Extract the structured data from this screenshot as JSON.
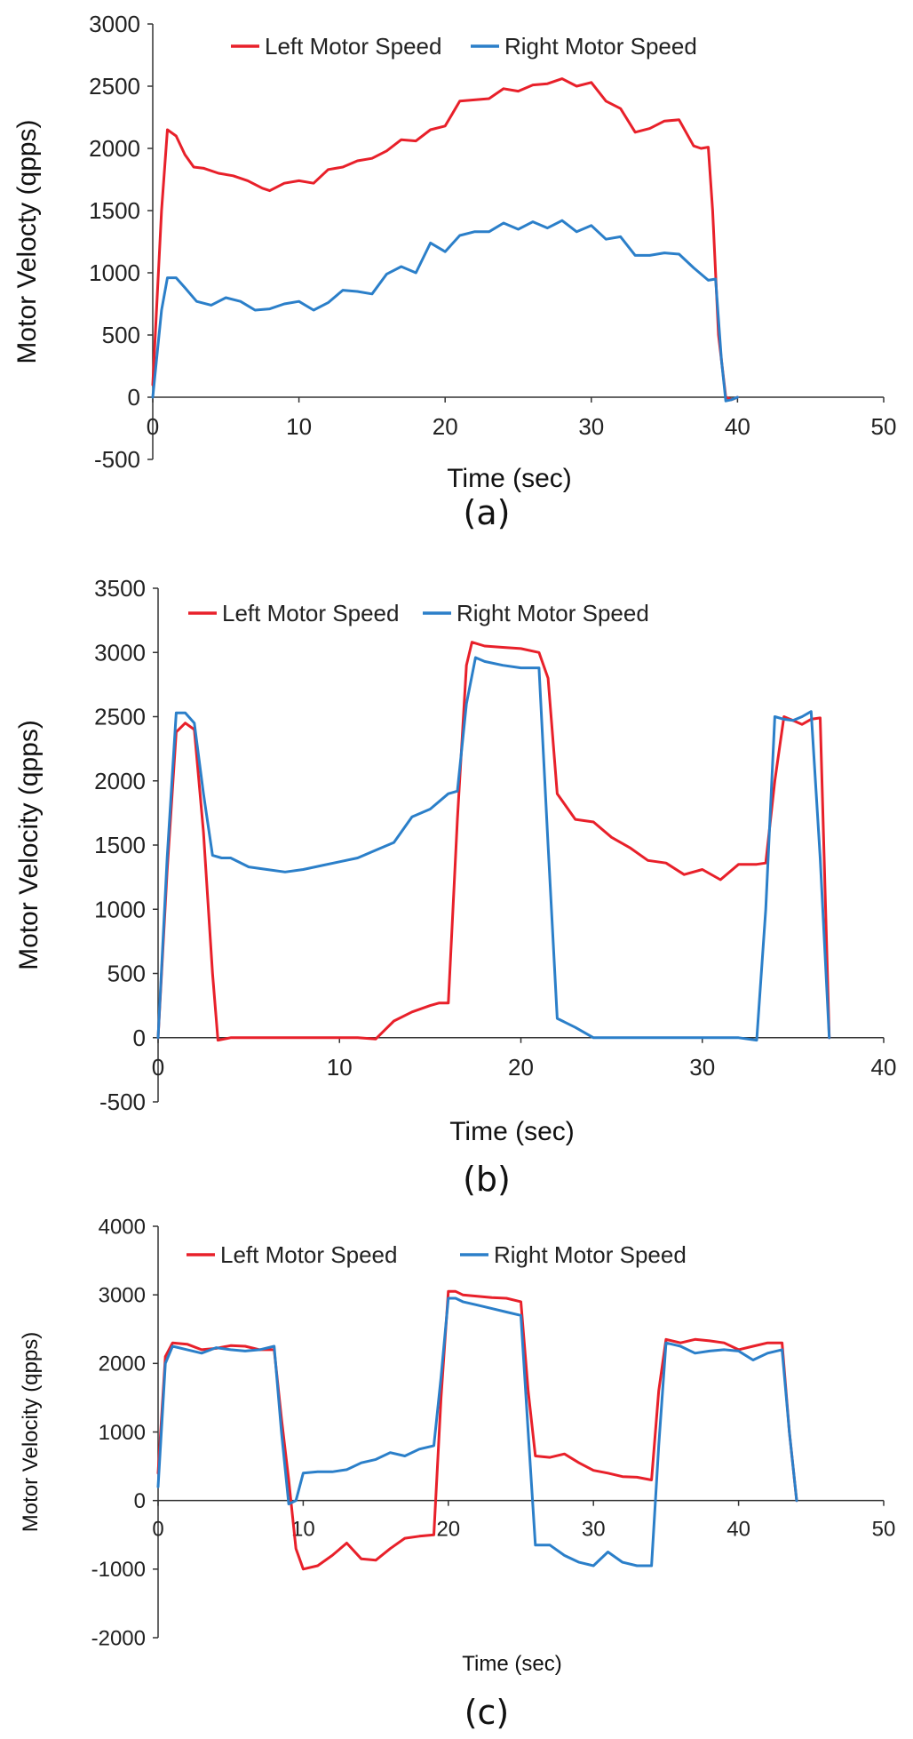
{
  "colors": {
    "left": "#e8202a",
    "right": "#2b7fc9",
    "axis": "#333333"
  },
  "chart_data": [
    {
      "type": "line",
      "panel_label": "(a)",
      "xlabel": "Time (sec)",
      "ylabel": "Motor Velocty (qpps)",
      "xlim": [
        0,
        50
      ],
      "ylim": [
        -500,
        3000
      ],
      "xticks": [
        0,
        10,
        20,
        30,
        40,
        50
      ],
      "yticks": [
        -500,
        0,
        500,
        1000,
        1500,
        2000,
        2500,
        3000
      ],
      "legend": [
        "Left Motor Speed",
        "Right Motor Speed"
      ],
      "series": [
        {
          "name": "Left Motor Speed",
          "x": [
            0,
            0.6,
            1,
            1.6,
            2.2,
            2.8,
            3.5,
            4.5,
            5.5,
            6.5,
            7.5,
            8,
            9,
            10,
            11,
            12,
            13,
            14,
            15,
            16,
            17,
            18,
            19,
            20,
            21,
            22,
            23,
            24,
            25,
            26,
            27,
            28,
            29,
            30,
            31,
            32,
            33,
            34,
            35,
            36,
            37,
            37.5,
            38,
            38.3,
            38.7,
            39.2,
            39.6,
            40
          ],
          "y": [
            100,
            1500,
            2150,
            2100,
            1950,
            1850,
            1840,
            1800,
            1780,
            1740,
            1680,
            1660,
            1720,
            1740,
            1720,
            1830,
            1850,
            1900,
            1920,
            1980,
            2070,
            2060,
            2150,
            2180,
            2380,
            2390,
            2400,
            2480,
            2460,
            2510,
            2520,
            2560,
            2500,
            2530,
            2380,
            2320,
            2130,
            2160,
            2220,
            2230,
            2020,
            2000,
            2010,
            1500,
            500,
            0,
            -20,
            0
          ]
        },
        {
          "name": "Right Motor Speed",
          "x": [
            0,
            0.6,
            1,
            1.6,
            2.2,
            3,
            4,
            5,
            6,
            7,
            8,
            9,
            10,
            11,
            12,
            13,
            14,
            15,
            16,
            17,
            18,
            19,
            20,
            21,
            22,
            23,
            24,
            25,
            26,
            27,
            28,
            29,
            30,
            31,
            32,
            33,
            34,
            35,
            36,
            37,
            38,
            38.5,
            38.9,
            39.2,
            39.6,
            40
          ],
          "y": [
            0,
            700,
            960,
            960,
            880,
            770,
            740,
            800,
            770,
            700,
            710,
            750,
            770,
            700,
            760,
            860,
            850,
            830,
            990,
            1050,
            1000,
            1240,
            1170,
            1300,
            1330,
            1330,
            1400,
            1350,
            1410,
            1360,
            1420,
            1330,
            1380,
            1270,
            1290,
            1140,
            1140,
            1160,
            1150,
            1040,
            940,
            950,
            300,
            -30,
            -20,
            0
          ]
        }
      ]
    },
    {
      "type": "line",
      "panel_label": "(b)",
      "xlabel": "Time (sec)",
      "ylabel": "Motor Velocity (qpps)",
      "xlim": [
        0,
        40
      ],
      "ylim": [
        -500,
        3500
      ],
      "xticks": [
        0,
        10,
        20,
        30,
        40
      ],
      "yticks": [
        -500,
        0,
        500,
        1000,
        1500,
        2000,
        2500,
        3000,
        3500
      ],
      "legend": [
        "Left Motor Speed",
        "Right Motor Speed"
      ],
      "series": [
        {
          "name": "Left Motor Speed",
          "x": [
            0,
            0.5,
            1,
            1.5,
            2,
            2.5,
            3,
            3.3,
            4,
            5,
            8,
            11,
            12,
            12.5,
            13,
            14,
            15,
            15.5,
            16,
            16.5,
            17,
            17.3,
            18,
            19,
            20,
            21,
            21.5,
            22,
            23,
            24,
            25,
            26,
            27,
            28,
            29,
            30,
            31,
            32,
            33,
            33.5,
            34,
            34.5,
            35,
            35.5,
            36,
            36.5,
            37
          ],
          "y": [
            0,
            1300,
            2380,
            2450,
            2400,
            1600,
            500,
            -20,
            0,
            0,
            0,
            0,
            -10,
            60,
            130,
            200,
            250,
            270,
            270,
            1700,
            2900,
            3080,
            3050,
            3040,
            3030,
            3000,
            2800,
            1900,
            1700,
            1680,
            1560,
            1480,
            1380,
            1360,
            1270,
            1310,
            1230,
            1350,
            1350,
            1360,
            2000,
            2500,
            2470,
            2440,
            2480,
            2490,
            0
          ]
        },
        {
          "name": "Right Motor Speed",
          "x": [
            0,
            0.5,
            1,
            1.5,
            2,
            2.5,
            3,
            3.5,
            4,
            5,
            6,
            7,
            8,
            9,
            10,
            11,
            12,
            13,
            14,
            15,
            16,
            16.5,
            17,
            17.5,
            18,
            19,
            20,
            21,
            21.5,
            22,
            23,
            24,
            25,
            28,
            32,
            33,
            33.5,
            34,
            34.5,
            35,
            35.5,
            36,
            36.5,
            37
          ],
          "y": [
            0,
            1400,
            2530,
            2530,
            2450,
            1900,
            1420,
            1400,
            1400,
            1330,
            1310,
            1290,
            1310,
            1340,
            1370,
            1400,
            1460,
            1520,
            1720,
            1780,
            1900,
            1920,
            2600,
            2960,
            2930,
            2900,
            2880,
            2880,
            1500,
            150,
            80,
            0,
            0,
            0,
            0,
            -20,
            1000,
            2500,
            2480,
            2470,
            2500,
            2540,
            1400,
            0
          ]
        }
      ]
    },
    {
      "type": "line",
      "panel_label": "(c)",
      "xlabel": "Time (sec)",
      "ylabel": "Motor Velocity (qpps)",
      "xlim": [
        0,
        50
      ],
      "ylim": [
        -2000,
        4000
      ],
      "xticks": [
        0,
        10,
        20,
        30,
        40,
        50
      ],
      "yticks": [
        -2000,
        -1000,
        0,
        1000,
        2000,
        3000,
        4000
      ],
      "legend": [
        "Left Motor Speed",
        "Right Motor Speed"
      ],
      "series": [
        {
          "name": "Left Motor Speed",
          "x": [
            0,
            0.5,
            1,
            2,
            3,
            4,
            5,
            6,
            7,
            8,
            8.5,
            9,
            9.5,
            10,
            11,
            12,
            13,
            14,
            15,
            16,
            17,
            18,
            19,
            19.5,
            20,
            20.5,
            21,
            22,
            23,
            24,
            25,
            25.5,
            26,
            27,
            28,
            29,
            30,
            31,
            32,
            33,
            34,
            34.5,
            35,
            36,
            37,
            38,
            39,
            40,
            41,
            42,
            43,
            43.5,
            44
          ],
          "y": [
            400,
            2100,
            2300,
            2280,
            2200,
            2220,
            2260,
            2250,
            2200,
            2200,
            1200,
            300,
            -700,
            -1000,
            -950,
            -800,
            -620,
            -850,
            -870,
            -700,
            -550,
            -520,
            -500,
            1500,
            3050,
            3050,
            3000,
            2980,
            2960,
            2950,
            2900,
            1600,
            650,
            630,
            680,
            550,
            440,
            400,
            350,
            340,
            300,
            1600,
            2350,
            2300,
            2350,
            2330,
            2300,
            2200,
            2250,
            2300,
            2300,
            1000,
            0
          ]
        },
        {
          "name": "Right Motor Speed",
          "x": [
            0,
            0.5,
            1,
            2,
            3,
            4,
            5,
            6,
            7,
            8,
            8.5,
            9,
            9.5,
            10,
            11,
            12,
            13,
            14,
            15,
            16,
            17,
            18,
            19,
            19.5,
            20,
            20.5,
            21,
            22,
            23,
            24,
            25,
            25.5,
            26,
            27,
            28,
            29,
            30,
            31,
            32,
            33,
            34,
            34.5,
            35,
            36,
            37,
            38,
            39,
            40,
            41,
            42,
            43,
            43.5,
            44
          ],
          "y": [
            200,
            2000,
            2250,
            2200,
            2150,
            2230,
            2200,
            2180,
            2200,
            2250,
            1000,
            -50,
            0,
            400,
            420,
            420,
            450,
            550,
            600,
            700,
            650,
            750,
            800,
            1800,
            2950,
            2950,
            2900,
            2850,
            2800,
            2750,
            2700,
            1000,
            -650,
            -650,
            -800,
            -900,
            -950,
            -750,
            -900,
            -950,
            -950,
            800,
            2300,
            2250,
            2150,
            2180,
            2200,
            2180,
            2050,
            2150,
            2200,
            1000,
            0
          ]
        }
      ]
    }
  ]
}
